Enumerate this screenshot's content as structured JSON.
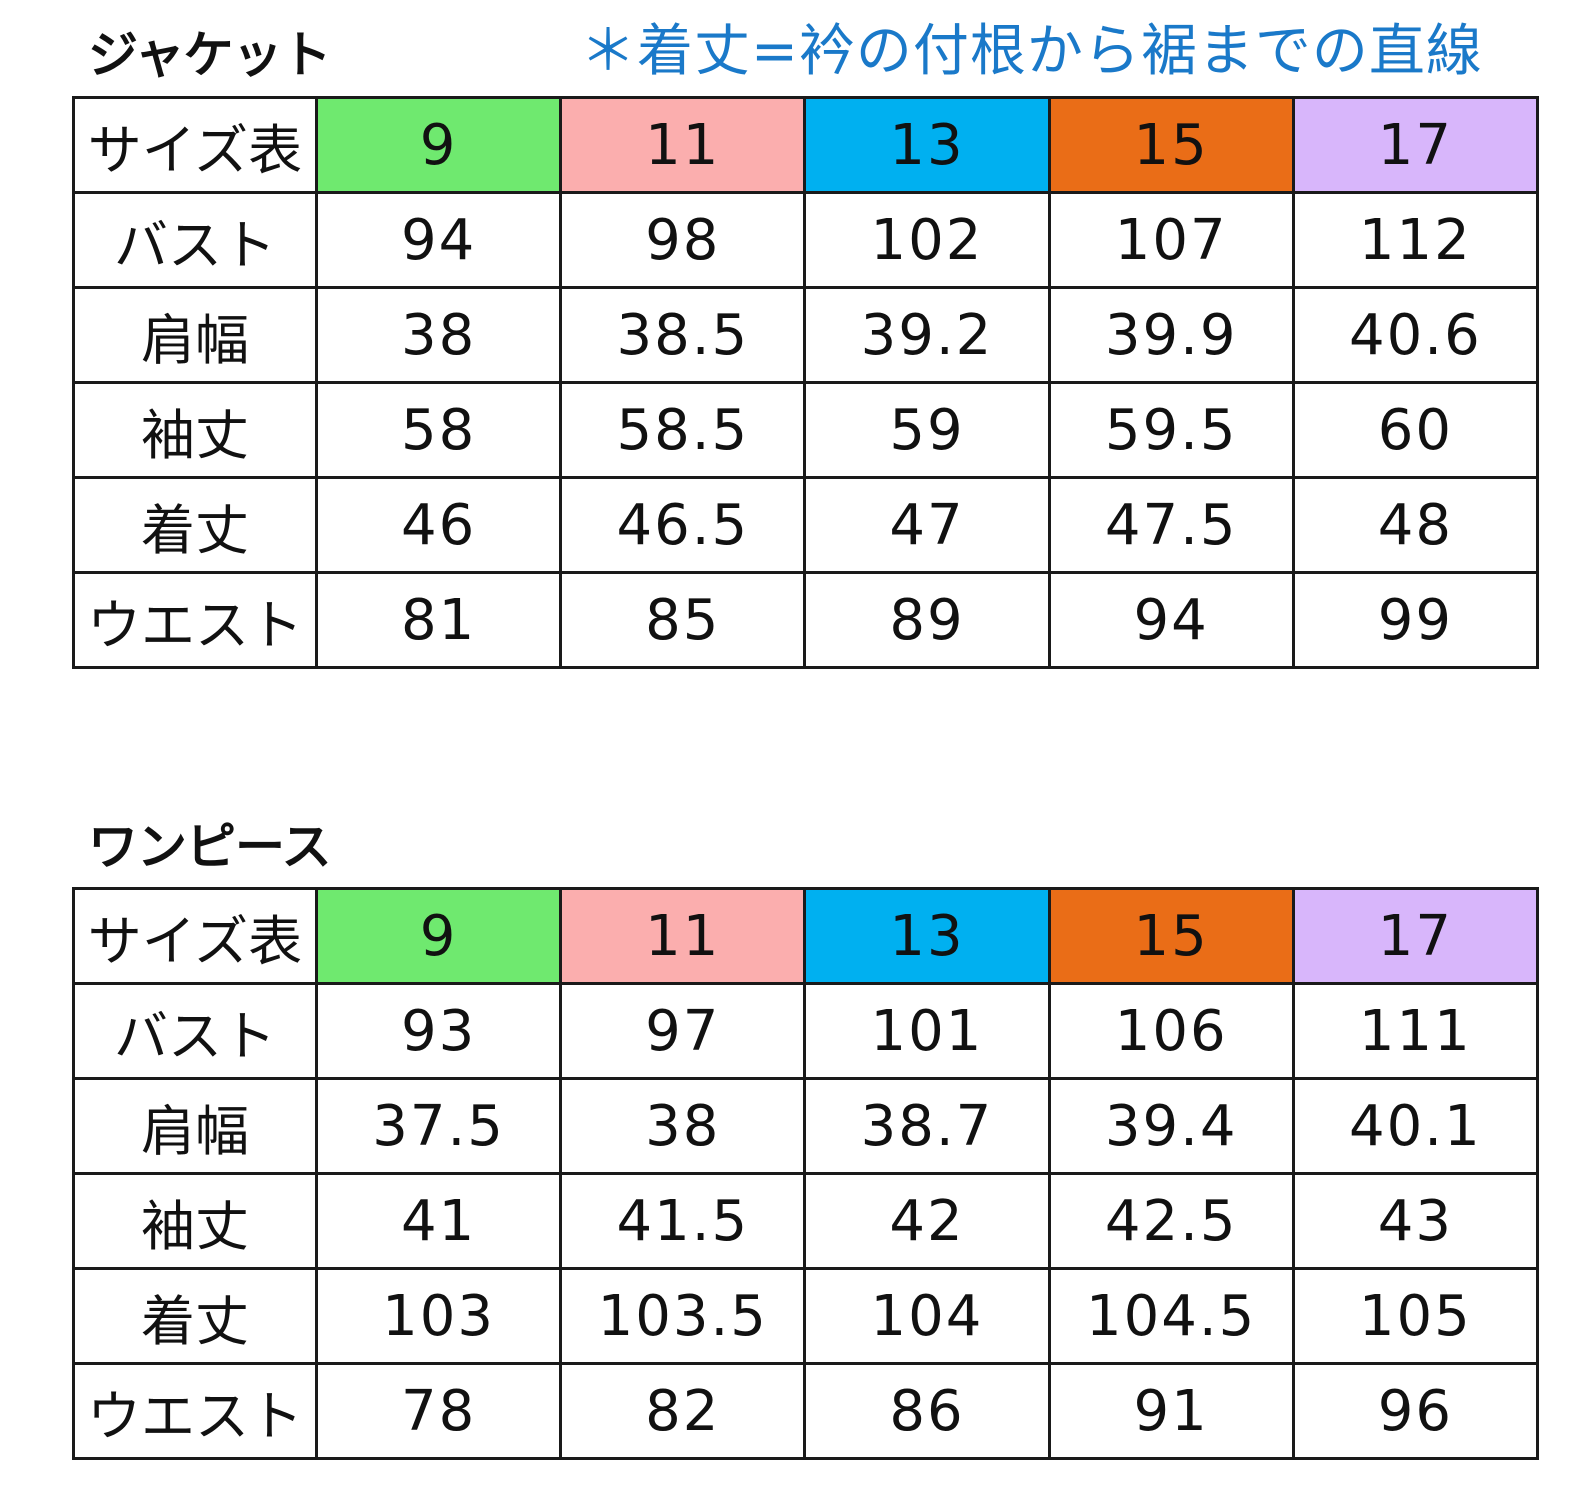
{
  "note": "＊着丈=衿の付根から裾までの直線",
  "tables": [
    {
      "title": "ジャケット",
      "header_label": "サイズ表",
      "sizes": [
        {
          "label": "9",
          "color": "#6fe96f"
        },
        {
          "label": "11",
          "color": "#fbaeae"
        },
        {
          "label": "13",
          "color": "#00b0f0"
        },
        {
          "label": "15",
          "color": "#ea6d17"
        },
        {
          "label": "17",
          "color": "#d8b6fb"
        }
      ],
      "rows": [
        {
          "label": "バスト",
          "values": [
            "94",
            "98",
            "102",
            "107",
            "112"
          ]
        },
        {
          "label": "肩幅",
          "values": [
            "38",
            "38.5",
            "39.2",
            "39.9",
            "40.6"
          ]
        },
        {
          "label": "袖丈",
          "values": [
            "58",
            "58.5",
            "59",
            "59.5",
            "60"
          ]
        },
        {
          "label": "着丈",
          "values": [
            "46",
            "46.5",
            "47",
            "47.5",
            "48"
          ]
        },
        {
          "label": "ウエスト",
          "values": [
            "81",
            "85",
            "89",
            "94",
            "99"
          ]
        }
      ]
    },
    {
      "title": "ワンピース",
      "header_label": "サイズ表",
      "sizes": [
        {
          "label": "9",
          "color": "#6fe96f"
        },
        {
          "label": "11",
          "color": "#fbaeae"
        },
        {
          "label": "13",
          "color": "#00b0f0"
        },
        {
          "label": "15",
          "color": "#ea6d17"
        },
        {
          "label": "17",
          "color": "#d8b6fb"
        }
      ],
      "rows": [
        {
          "label": "バスト",
          "values": [
            "93",
            "97",
            "101",
            "106",
            "111"
          ]
        },
        {
          "label": "肩幅",
          "values": [
            "37.5",
            "38",
            "38.7",
            "39.4",
            "40.1"
          ]
        },
        {
          "label": "袖丈",
          "values": [
            "41",
            "41.5",
            "42",
            "42.5",
            "43"
          ]
        },
        {
          "label": "着丈",
          "values": [
            "103",
            "103.5",
            "104",
            "104.5",
            "105"
          ]
        },
        {
          "label": "ウエスト",
          "values": [
            "78",
            "82",
            "86",
            "91",
            "96"
          ]
        }
      ]
    }
  ]
}
